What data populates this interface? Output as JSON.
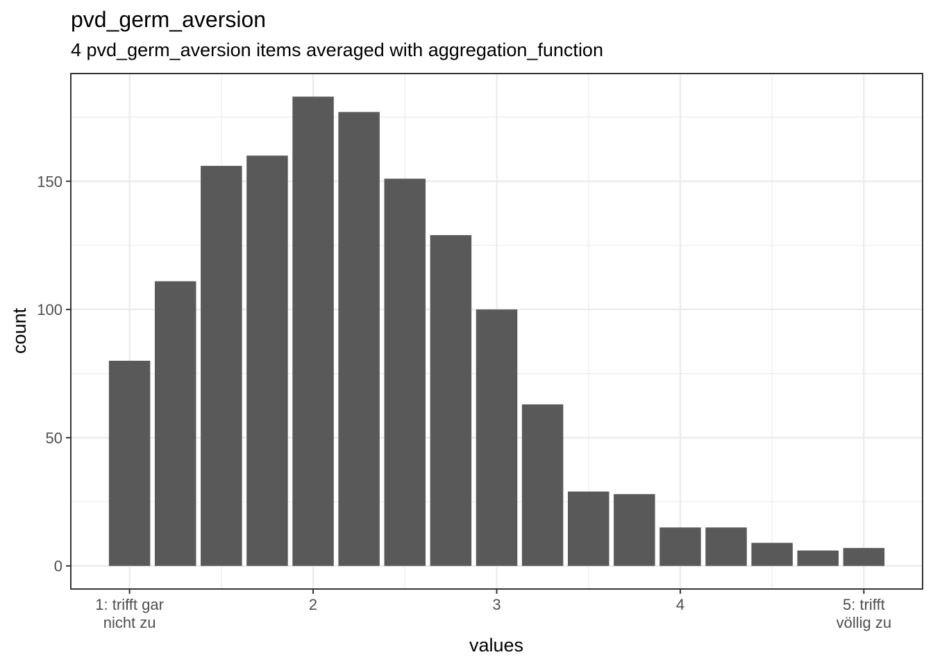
{
  "chart_data": {
    "type": "bar",
    "title": "pvd_germ_aversion",
    "subtitle": "4 pvd_germ_aversion items averaged with aggregation_function",
    "xlabel": "values",
    "ylabel": "count",
    "x": [
      1.0,
      1.25,
      1.5,
      1.75,
      2.0,
      2.25,
      2.5,
      2.75,
      3.0,
      3.25,
      3.5,
      3.75,
      4.0,
      4.25,
      4.5,
      4.75,
      5.0
    ],
    "values": [
      80,
      111,
      156,
      160,
      183,
      177,
      151,
      129,
      100,
      63,
      29,
      28,
      15,
      15,
      9,
      6,
      7
    ],
    "xlim": [
      0.68,
      5.32
    ],
    "ylim": [
      -9,
      192
    ],
    "x_ticks": [
      {
        "value": 1,
        "label": "1: trifft gar\nnicht zu"
      },
      {
        "value": 2,
        "label": "2"
      },
      {
        "value": 3,
        "label": "3"
      },
      {
        "value": 4,
        "label": "4"
      },
      {
        "value": 5,
        "label": "5: trifft\nvöllig zu"
      }
    ],
    "y_ticks": [
      0,
      50,
      100,
      150
    ],
    "bar_color": "#595959",
    "grid": true,
    "theme": "bw"
  }
}
